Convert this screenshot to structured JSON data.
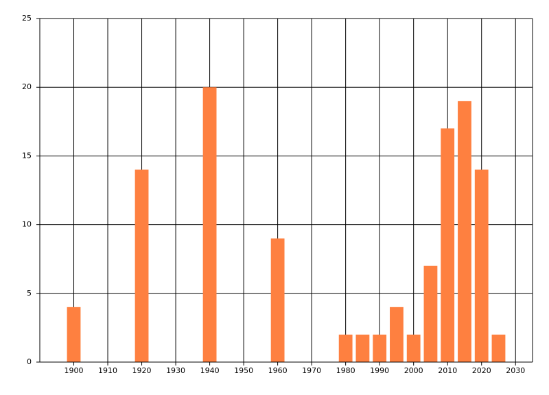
{
  "chart_data": {
    "type": "bar",
    "color": "#fe8040",
    "x": [
      1900,
      1920,
      1940,
      1960,
      1980,
      1985,
      1990,
      1995,
      2000,
      2005,
      2010,
      2015,
      2020,
      2025
    ],
    "values": [
      4,
      14,
      20,
      9,
      2,
      2,
      2,
      4,
      2,
      7,
      17,
      19,
      14,
      2
    ],
    "bar_width": 4,
    "xlim": [
      1890,
      2035
    ],
    "xticks": [
      1900,
      1910,
      1920,
      1930,
      1940,
      1950,
      1960,
      1970,
      1980,
      1990,
      2000,
      2010,
      2020,
      2030
    ],
    "ylim": [
      0,
      25
    ],
    "yticks": [
      0,
      5,
      10,
      15,
      20,
      25
    ],
    "grid": true
  }
}
